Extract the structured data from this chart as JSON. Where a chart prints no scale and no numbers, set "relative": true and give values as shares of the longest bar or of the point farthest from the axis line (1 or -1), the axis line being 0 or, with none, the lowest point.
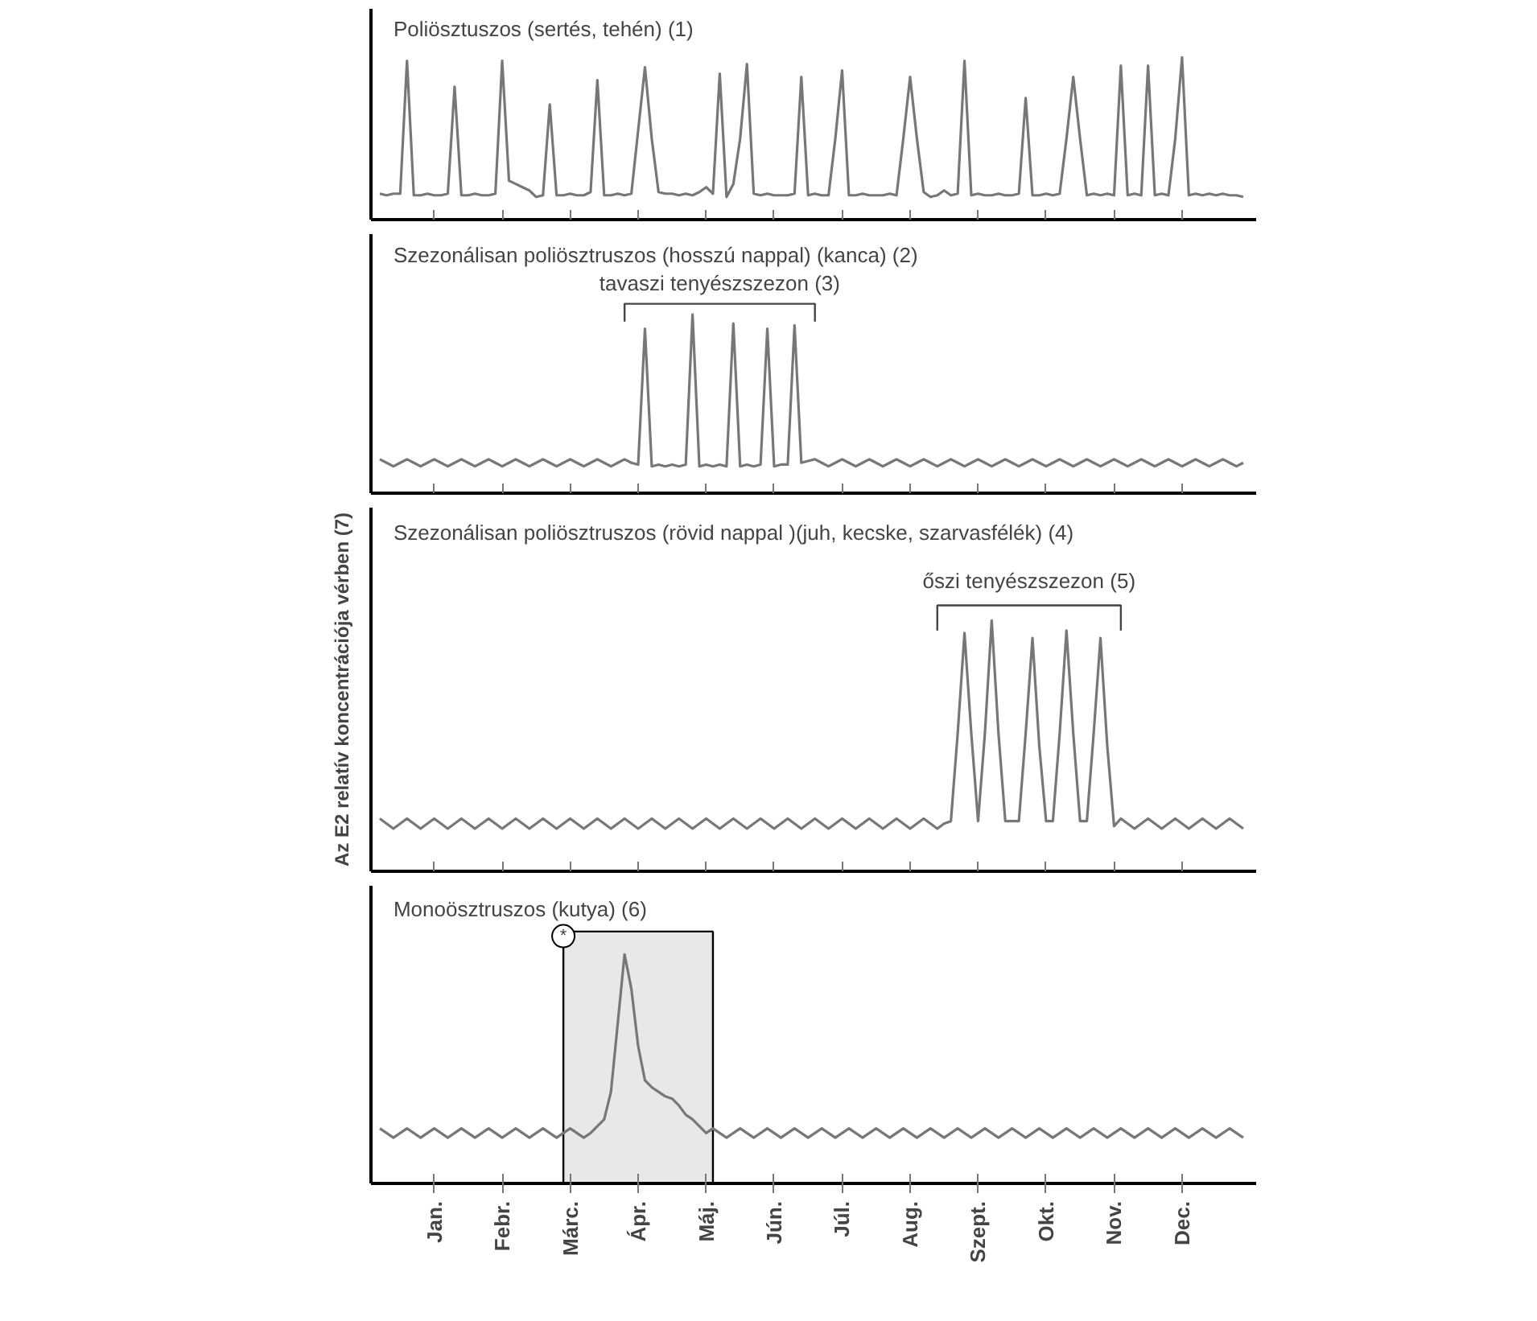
{
  "chart_data": [
    {
      "type": "line",
      "title": "Poliösztuszos (sertés, tehén) (1)",
      "relative": true,
      "tick_labels": false,
      "categories": [
        null,
        null,
        null,
        null,
        null,
        null,
        null,
        null,
        null,
        null,
        null,
        null,
        null,
        null,
        null,
        null,
        null,
        null,
        null,
        null,
        null,
        null,
        null,
        null,
        null,
        null,
        null,
        null,
        null,
        null,
        null,
        null,
        null,
        null,
        null,
        null,
        null,
        null,
        null,
        null,
        null,
        null,
        null,
        null,
        null,
        null,
        null,
        null,
        null,
        null,
        null,
        null,
        null,
        null,
        null,
        null,
        null,
        null,
        null,
        null,
        null,
        null,
        null,
        null,
        null,
        null,
        null,
        null,
        null,
        null,
        null,
        null,
        null,
        null,
        null,
        null,
        null,
        null,
        null,
        null,
        null,
        null,
        null,
        null,
        null,
        null,
        null,
        null,
        null,
        null,
        null,
        null,
        null,
        null,
        null,
        null,
        null,
        null,
        null,
        null,
        null,
        null,
        null,
        null,
        null,
        null,
        null,
        null,
        null,
        null,
        null,
        null,
        null,
        null,
        null,
        null,
        null,
        null,
        null,
        null,
        null,
        null,
        null,
        null,
        null,
        null,
        null,
        null
      ],
      "series": [
        {
          "color": "#777777",
          "values": [
            0.16,
            0.15,
            0.16,
            0.16,
            0.98,
            0.15,
            0.15,
            0.16,
            0.15,
            0.15,
            0.16,
            0.82,
            0.15,
            0.15,
            0.16,
            0.15,
            0.15,
            0.16,
            0.98,
            0.24,
            0.22,
            0.2,
            0.18,
            0.14,
            0.15,
            0.71,
            0.15,
            0.15,
            0.16,
            0.15,
            0.15,
            0.17,
            0.86,
            0.15,
            0.15,
            0.16,
            0.15,
            0.16,
            0.55,
            0.94,
            0.5,
            0.17,
            0.16,
            0.16,
            0.15,
            0.16,
            0.15,
            0.17,
            0.2,
            0.16,
            0.9,
            0.14,
            0.22,
            0.5,
            0.96,
            0.16,
            0.15,
            0.16,
            0.15,
            0.15,
            0.15,
            0.16,
            0.88,
            0.15,
            0.16,
            0.15,
            0.15,
            0.5,
            0.92,
            0.15,
            0.15,
            0.16,
            0.15,
            0.15,
            0.15,
            0.16,
            0.15,
            0.5,
            0.88,
            0.5,
            0.17,
            0.14,
            0.15,
            0.18,
            0.15,
            0.16,
            0.98,
            0.15,
            0.16,
            0.15,
            0.15,
            0.16,
            0.15,
            0.15,
            0.16,
            0.75,
            0.15,
            0.15,
            0.16,
            0.15,
            0.16,
            0.5,
            0.88,
            0.5,
            0.15,
            0.16,
            0.15,
            0.16,
            0.15,
            0.95,
            0.15,
            0.16,
            0.15,
            0.95,
            0.15,
            0.16,
            0.15,
            0.5,
            1.0,
            0.15,
            0.16,
            0.15,
            0.16,
            0.15,
            0.16,
            0.15,
            0.15,
            0.14
          ]
        }
      ]
    },
    {
      "type": "line",
      "title": "Szezonálisan poliösztruszos (hosszú nappal) (kanca) (2)",
      "relative": true,
      "tick_labels": false,
      "annotations": [
        "tavaszi tenyészszezon (3)"
      ],
      "categories": [
        null,
        null,
        null,
        null,
        null,
        null,
        null,
        null,
        null,
        null,
        null,
        null,
        null,
        null,
        null,
        null,
        null,
        null,
        null,
        null,
        null,
        null,
        null,
        null,
        null,
        null,
        null,
        null,
        null,
        null,
        null,
        null,
        null,
        null,
        null,
        null,
        null,
        null,
        null,
        null,
        null,
        null,
        null,
        null,
        null,
        null,
        null,
        null,
        null,
        null,
        null,
        null,
        null,
        null,
        null,
        null,
        null,
        null,
        null,
        null,
        null,
        null,
        null,
        null,
        null,
        null,
        null,
        null,
        null,
        null,
        null,
        null,
        null,
        null,
        null,
        null,
        null,
        null,
        null,
        null,
        null,
        null,
        null,
        null,
        null,
        null,
        null,
        null,
        null,
        null,
        null,
        null,
        null,
        null,
        null,
        null,
        null,
        null,
        null,
        null,
        null,
        null,
        null,
        null,
        null,
        null,
        null,
        null,
        null,
        null,
        null,
        null,
        null,
        null,
        null,
        null,
        null,
        null,
        null,
        null,
        null,
        null,
        null,
        null,
        null,
        null,
        null,
        null
      ],
      "series": [
        {
          "color": "#777777",
          "values": [
            0.19,
            0.17,
            0.15,
            0.17,
            0.19,
            0.17,
            0.15,
            0.17,
            0.19,
            0.17,
            0.15,
            0.17,
            0.19,
            0.17,
            0.15,
            0.17,
            0.19,
            0.17,
            0.15,
            0.17,
            0.19,
            0.17,
            0.15,
            0.17,
            0.19,
            0.17,
            0.15,
            0.17,
            0.19,
            0.17,
            0.15,
            0.17,
            0.19,
            0.17,
            0.15,
            0.17,
            0.19,
            0.17,
            0.16,
            0.92,
            0.15,
            0.16,
            0.15,
            0.16,
            0.15,
            0.16,
            1.0,
            0.15,
            0.16,
            0.15,
            0.16,
            0.15,
            0.95,
            0.15,
            0.16,
            0.15,
            0.16,
            0.92,
            0.15,
            0.16,
            0.16,
            0.94,
            0.17,
            0.18,
            0.19,
            0.17,
            0.15,
            0.17,
            0.19,
            0.17,
            0.15,
            0.17,
            0.19,
            0.17,
            0.15,
            0.17,
            0.19,
            0.17,
            0.15,
            0.17,
            0.19,
            0.17,
            0.15,
            0.17,
            0.19,
            0.17,
            0.15,
            0.17,
            0.19,
            0.17,
            0.15,
            0.17,
            0.19,
            0.17,
            0.15,
            0.17,
            0.19,
            0.17,
            0.15,
            0.17,
            0.19,
            0.17,
            0.15,
            0.17,
            0.19,
            0.17,
            0.15,
            0.17,
            0.19,
            0.17,
            0.15,
            0.17,
            0.19,
            0.17,
            0.15,
            0.17,
            0.19,
            0.17,
            0.15,
            0.17,
            0.19,
            0.17,
            0.15,
            0.17,
            0.19,
            0.17,
            0.15,
            0.17
          ]
        }
      ]
    },
    {
      "type": "line",
      "title": "Szezonálisan poliösztruszos (rövid nappal )(juh, kecske, szarvasfélék) (4)",
      "ylabel": "Az E2 relatív koncentrációja vérben (7)",
      "relative": true,
      "tick_labels": false,
      "annotations": [
        "őszi tenyészszezon (5)"
      ],
      "categories": [
        null,
        null,
        null,
        null,
        null,
        null,
        null,
        null,
        null,
        null,
        null,
        null,
        null,
        null,
        null,
        null,
        null,
        null,
        null,
        null,
        null,
        null,
        null,
        null,
        null,
        null,
        null,
        null,
        null,
        null,
        null,
        null,
        null,
        null,
        null,
        null,
        null,
        null,
        null,
        null,
        null,
        null,
        null,
        null,
        null,
        null,
        null,
        null,
        null,
        null,
        null,
        null,
        null,
        null,
        null,
        null,
        null,
        null,
        null,
        null,
        null,
        null,
        null,
        null,
        null,
        null,
        null,
        null,
        null,
        null,
        null,
        null,
        null,
        null,
        null,
        null,
        null,
        null,
        null,
        null,
        null,
        null,
        null,
        null,
        null,
        null,
        null,
        null,
        null,
        null,
        null,
        null,
        null,
        null,
        null,
        null,
        null,
        null,
        null,
        null,
        null,
        null,
        null,
        null,
        null,
        null,
        null,
        null,
        null,
        null,
        null,
        null,
        null,
        null,
        null,
        null,
        null,
        null,
        null,
        null,
        null,
        null,
        null,
        null,
        null,
        null,
        null,
        null
      ],
      "series": [
        {
          "color": "#777777",
          "values": [
            0.21,
            0.19,
            0.17,
            0.19,
            0.21,
            0.19,
            0.17,
            0.19,
            0.21,
            0.19,
            0.17,
            0.19,
            0.21,
            0.19,
            0.17,
            0.19,
            0.21,
            0.19,
            0.17,
            0.19,
            0.21,
            0.19,
            0.17,
            0.19,
            0.21,
            0.19,
            0.17,
            0.19,
            0.21,
            0.19,
            0.17,
            0.19,
            0.21,
            0.19,
            0.17,
            0.19,
            0.21,
            0.19,
            0.17,
            0.19,
            0.21,
            0.19,
            0.17,
            0.19,
            0.21,
            0.19,
            0.17,
            0.19,
            0.21,
            0.19,
            0.17,
            0.19,
            0.21,
            0.19,
            0.17,
            0.19,
            0.21,
            0.19,
            0.17,
            0.19,
            0.21,
            0.19,
            0.17,
            0.19,
            0.21,
            0.19,
            0.17,
            0.19,
            0.21,
            0.19,
            0.17,
            0.19,
            0.21,
            0.19,
            0.17,
            0.19,
            0.21,
            0.19,
            0.17,
            0.19,
            0.21,
            0.19,
            0.17,
            0.19,
            0.2,
            0.55,
            0.95,
            0.55,
            0.2,
            0.55,
            1.0,
            0.55,
            0.2,
            0.2,
            0.2,
            0.55,
            0.93,
            0.5,
            0.2,
            0.2,
            0.55,
            0.96,
            0.55,
            0.2,
            0.2,
            0.55,
            0.93,
            0.5,
            0.18,
            0.21,
            0.19,
            0.17,
            0.19,
            0.21,
            0.19,
            0.17,
            0.19,
            0.21,
            0.19,
            0.17,
            0.19,
            0.21,
            0.19,
            0.17,
            0.19,
            0.21,
            0.19,
            0.17
          ]
        }
      ]
    },
    {
      "type": "line",
      "title": "Monoösztruszos (kutya) (6)",
      "relative": true,
      "tick_labels": "x",
      "bands": [
        {
          "axis": "x",
          "from": "Márc.",
          "to": "Máj.",
          "label": "*",
          "color": "#e8e8e8"
        }
      ],
      "categories": [
        null,
        null,
        null,
        null,
        null,
        null,
        null,
        null,
        "Jan.",
        null,
        null,
        null,
        null,
        null,
        null,
        null,
        null,
        null,
        "Febr.",
        null,
        null,
        null,
        null,
        null,
        null,
        null,
        null,
        null,
        "Márc.",
        null,
        null,
        null,
        null,
        null,
        null,
        null,
        null,
        null,
        "Ápr.",
        null,
        null,
        null,
        null,
        null,
        null,
        null,
        null,
        null,
        "Máj.",
        null,
        null,
        null,
        null,
        null,
        null,
        null,
        null,
        null,
        "Jún.",
        null,
        null,
        null,
        null,
        null,
        null,
        null,
        null,
        null,
        "Júl.",
        null,
        null,
        null,
        null,
        null,
        null,
        null,
        null,
        null,
        "Aug.",
        null,
        null,
        null,
        null,
        null,
        null,
        null,
        null,
        null,
        "Szept.",
        null,
        null,
        null,
        null,
        null,
        null,
        null,
        null,
        null,
        "Okt.",
        null,
        null,
        null,
        null,
        null,
        null,
        null,
        null,
        null,
        "Nov.",
        null,
        null,
        null,
        null,
        null,
        null,
        null,
        null,
        null,
        "Dec.",
        null,
        null,
        null,
        null,
        null,
        null,
        null,
        null,
        null
      ],
      "series": [
        {
          "color": "#777777",
          "values": [
            0.24,
            0.22,
            0.2,
            0.22,
            0.24,
            0.22,
            0.2,
            0.22,
            0.24,
            0.22,
            0.2,
            0.22,
            0.24,
            0.22,
            0.2,
            0.22,
            0.24,
            0.22,
            0.2,
            0.22,
            0.24,
            0.22,
            0.2,
            0.22,
            0.24,
            0.22,
            0.2,
            0.22,
            0.24,
            0.22,
            0.2,
            0.22,
            0.25,
            0.28,
            0.4,
            0.7,
            1.0,
            0.85,
            0.6,
            0.45,
            0.42,
            0.4,
            0.38,
            0.37,
            0.34,
            0.3,
            0.28,
            0.25,
            0.22,
            0.24,
            0.22,
            0.2,
            0.22,
            0.24,
            0.22,
            0.2,
            0.22,
            0.24,
            0.22,
            0.2,
            0.22,
            0.24,
            0.22,
            0.2,
            0.22,
            0.24,
            0.22,
            0.2,
            0.22,
            0.24,
            0.22,
            0.2,
            0.22,
            0.24,
            0.22,
            0.2,
            0.22,
            0.24,
            0.22,
            0.2,
            0.22,
            0.24,
            0.22,
            0.2,
            0.22,
            0.24,
            0.22,
            0.2,
            0.22,
            0.24,
            0.22,
            0.2,
            0.22,
            0.24,
            0.22,
            0.2,
            0.22,
            0.24,
            0.22,
            0.2,
            0.22,
            0.24,
            0.22,
            0.2,
            0.22,
            0.24,
            0.22,
            0.2,
            0.22,
            0.24,
            0.22,
            0.2,
            0.22,
            0.24,
            0.22,
            0.2,
            0.22,
            0.24,
            0.22,
            0.2,
            0.22,
            0.24,
            0.22,
            0.2,
            0.22,
            0.24,
            0.22,
            0.2
          ]
        }
      ]
    }
  ]
}
